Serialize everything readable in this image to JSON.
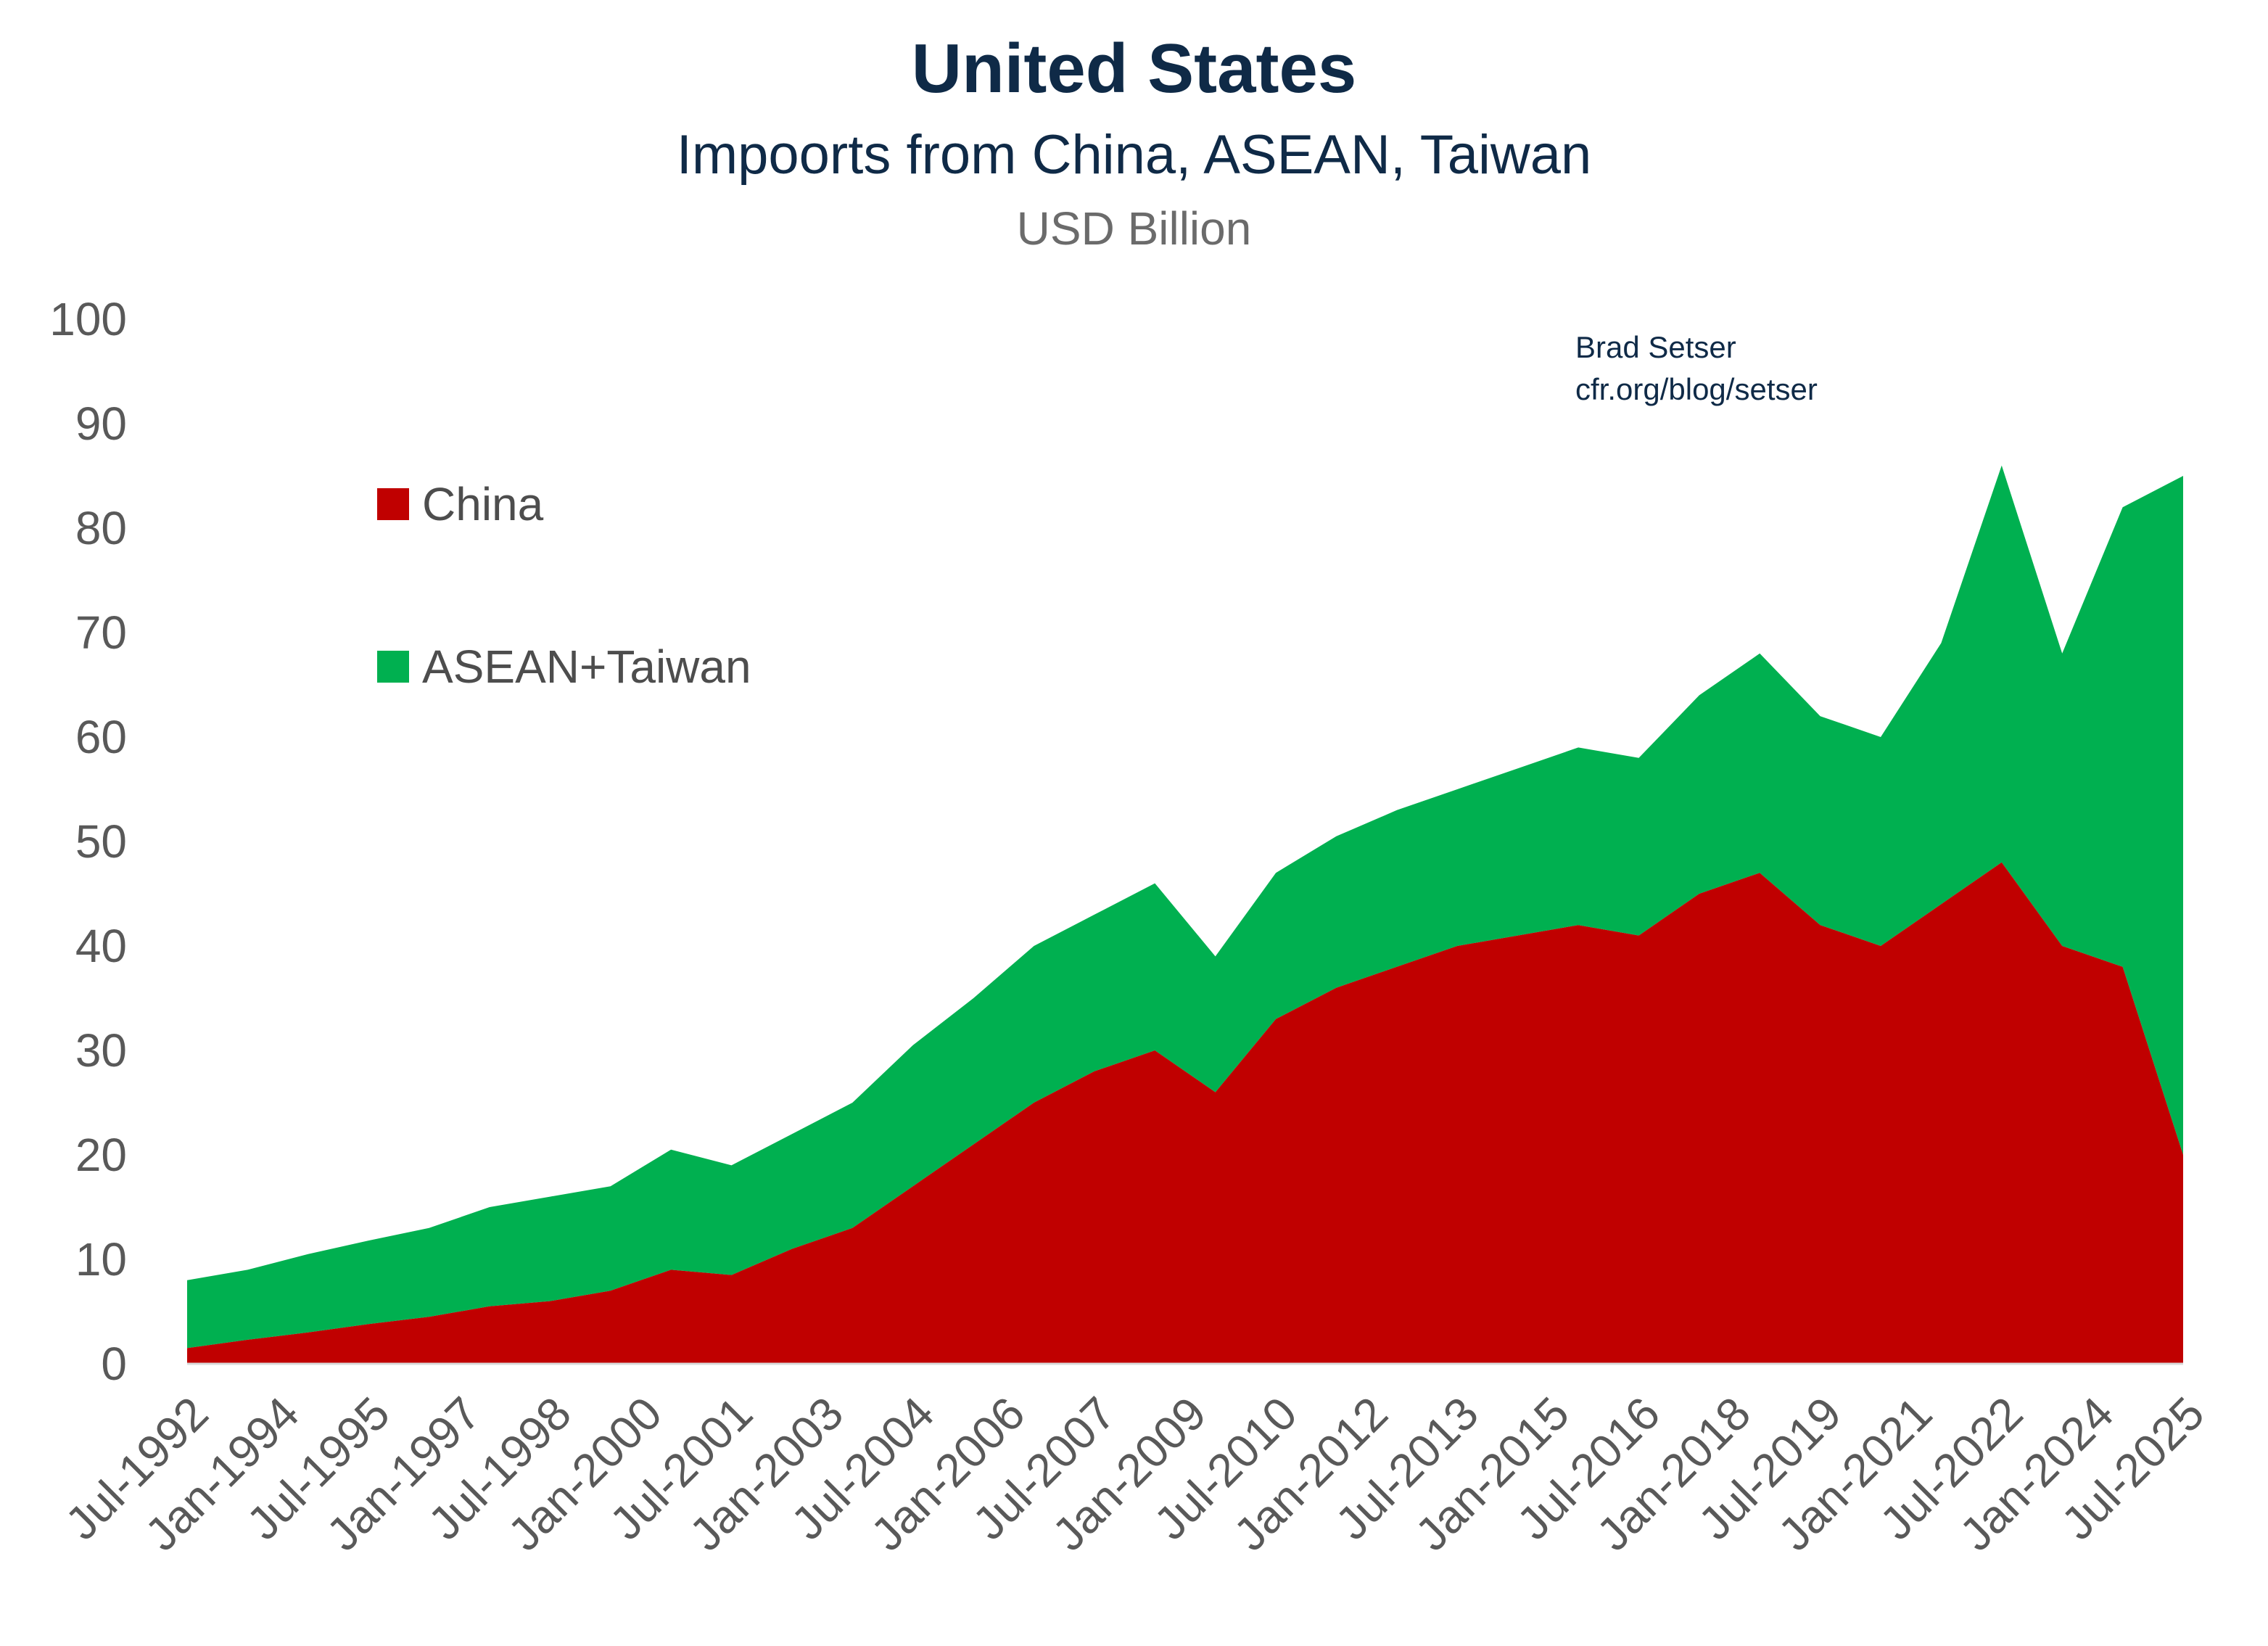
{
  "header": {
    "title": "United States",
    "subtitle": "Impoorts from China, ASEAN, Taiwan",
    "units": "USD Billion"
  },
  "credit": {
    "author": "Brad Setser",
    "url": "cfr.org/blog/setser"
  },
  "colors": {
    "china": "#c00000",
    "asean_taiwan": "#00b050",
    "text_dark": "#0f2a47",
    "text_gray": "#595959"
  },
  "chart_data": {
    "type": "area",
    "stacked": true,
    "title": "United States",
    "subtitle": "Impoorts from China, ASEAN, Taiwan",
    "ylabel": "USD Billion",
    "ylim": [
      0,
      100
    ],
    "yticks": [
      "0",
      "10",
      "20",
      "30",
      "40",
      "50",
      "60",
      "70",
      "80",
      "90",
      "100"
    ],
    "xticks": [
      "Jul-1992",
      "Jan-1994",
      "Jul-1995",
      "Jan-1997",
      "Jul-1998",
      "Jan-2000",
      "Jul-2001",
      "Jan-2003",
      "Jul-2004",
      "Jan-2006",
      "Jul-2007",
      "Jan-2009",
      "Jul-2010",
      "Jan-2012",
      "Jul-2013",
      "Jan-2015",
      "Jul-2016",
      "Jan-2018",
      "Jul-2019",
      "Jan-2021",
      "Jul-2022",
      "Jan-2024",
      "Jul-2025"
    ],
    "legend_position": "upper-left",
    "x_start": "Jul-1992",
    "x_end": "Jul-2025",
    "frequency": "annual (July) samples of monthly data",
    "x": [
      "Jul-1992",
      "Jul-1993",
      "Jul-1994",
      "Jul-1995",
      "Jul-1996",
      "Jul-1997",
      "Jul-1998",
      "Jul-1999",
      "Jul-2000",
      "Jul-2001",
      "Jul-2002",
      "Jul-2003",
      "Jul-2004",
      "Jul-2005",
      "Jul-2006",
      "Jul-2007",
      "Jul-2008",
      "Jul-2009",
      "Jul-2010",
      "Jul-2011",
      "Jul-2012",
      "Jul-2013",
      "Jul-2014",
      "Jul-2015",
      "Jul-2016",
      "Jul-2017",
      "Jul-2018",
      "Jul-2019",
      "Jul-2020",
      "Jul-2021",
      "Jul-2022",
      "Jul-2023",
      "Jul-2024",
      "Jul-2025"
    ],
    "series": [
      {
        "name": "China",
        "color": "#c00000",
        "values": [
          1.5,
          2.3,
          3.0,
          3.8,
          4.5,
          5.5,
          6.0,
          7.0,
          9.0,
          8.5,
          11.0,
          13.0,
          17.0,
          21.0,
          25.0,
          28.0,
          30.0,
          26.0,
          33.0,
          36.0,
          38.0,
          40.0,
          41.0,
          42.0,
          41.0,
          45.0,
          47.0,
          42.0,
          40.0,
          44.0,
          48.0,
          40.0,
          38.0,
          20.0
        ]
      },
      {
        "name": "ASEAN+Taiwan",
        "color": "#00b050",
        "values": [
          6.5,
          6.7,
          7.5,
          8.0,
          8.5,
          9.5,
          10.0,
          10.0,
          11.5,
          10.5,
          11.0,
          12.0,
          13.5,
          14.0,
          15.0,
          15.0,
          16.0,
          13.0,
          14.0,
          14.5,
          15.0,
          15.0,
          16.0,
          17.0,
          17.0,
          19.0,
          21.0,
          20.0,
          20.0,
          25.0,
          38.0,
          28.0,
          44.0,
          65.0
        ]
      }
    ]
  }
}
